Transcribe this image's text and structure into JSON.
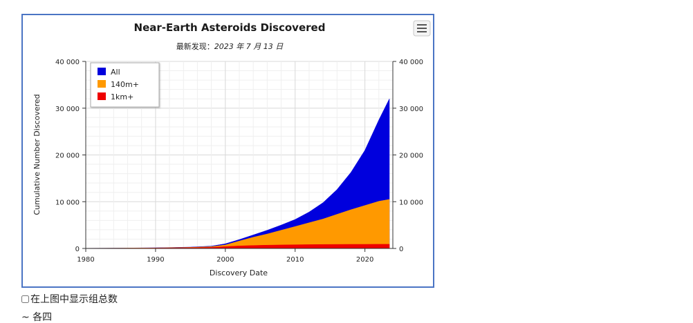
{
  "chart_data": {
    "type": "area",
    "title": "Near-Earth Asteroids Discovered",
    "subtitle_prefix": "最新发现：",
    "subtitle_date": "2023 年 7 月 13 日",
    "xlabel": "Discovery Date",
    "ylabel": "Cumulative Number Discovered",
    "xlim": [
      1980,
      2024
    ],
    "ylim": [
      0,
      40000
    ],
    "x_ticks": [
      1980,
      1990,
      2000,
      2010,
      2020
    ],
    "y_ticks": [
      0,
      10000,
      20000,
      30000,
      40000
    ],
    "y_tick_labels": [
      "0",
      "10 000",
      "20 000",
      "30 000",
      "40 000"
    ],
    "grid": true,
    "legend_position": "top-left",
    "x": [
      1980,
      1985,
      1990,
      1995,
      1998,
      2000,
      2002,
      2004,
      2006,
      2008,
      2010,
      2012,
      2014,
      2016,
      2018,
      2020,
      2022,
      2023.5
    ],
    "series": [
      {
        "name": "All",
        "color": "#0000dd",
        "values": [
          50,
          90,
          150,
          300,
          500,
          1000,
          1900,
          2900,
          3900,
          5000,
          6200,
          7800,
          9800,
          12600,
          16300,
          21000,
          27500,
          32000
        ]
      },
      {
        "name": "140m+",
        "color": "#ff9900",
        "values": [
          40,
          70,
          120,
          230,
          380,
          750,
          1600,
          2400,
          3100,
          3900,
          4700,
          5500,
          6300,
          7300,
          8300,
          9200,
          10100,
          10500
        ]
      },
      {
        "name": "1km+",
        "color": "#ee0000",
        "values": [
          30,
          50,
          90,
          160,
          240,
          400,
          550,
          640,
          710,
          760,
          800,
          830,
          850,
          870,
          880,
          890,
          900,
          905
        ]
      }
    ]
  },
  "ui": {
    "menu_icon": "hamburger-menu-icon",
    "checkbox_label": "在上图中显示组总数",
    "cut_text": "~ 各四"
  }
}
